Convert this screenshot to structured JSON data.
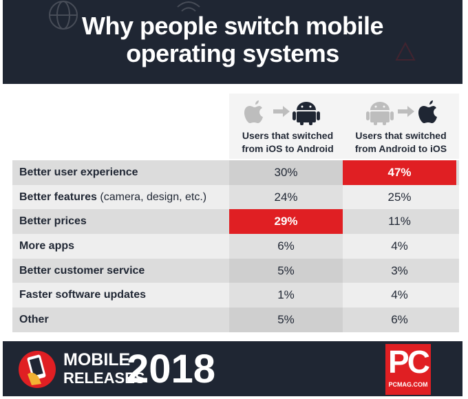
{
  "title": "Why people switch mobile\noperating systems",
  "columns": [
    {
      "label": "Users that switched\nfrom iOS to Android",
      "icons": [
        "apple-icon",
        "arrow-icon",
        "android-icon"
      ]
    },
    {
      "label": "Users that switched\nfrom Android to iOS",
      "icons": [
        "android-icon",
        "arrow-icon",
        "apple-icon"
      ]
    }
  ],
  "colors": {
    "header_bg": "#1f2633",
    "highlight": "#e01f23",
    "row_shade": "#dcdcdc",
    "row_light": "#eeeeee"
  },
  "chart_data": {
    "type": "table",
    "title": "Why people switch mobile operating systems",
    "columns": [
      "Users that switched from iOS to Android",
      "Users that switched from Android to iOS"
    ],
    "rows": [
      {
        "bold": "Better user experience",
        "rest": "",
        "values": [
          "30%",
          "47%"
        ],
        "highlight": [
          false,
          true
        ]
      },
      {
        "bold": "Better features",
        "rest": " (camera, design, etc.)",
        "values": [
          "24%",
          "25%"
        ],
        "highlight": [
          false,
          false
        ]
      },
      {
        "bold": "Better prices",
        "rest": "",
        "values": [
          "29%",
          "11%"
        ],
        "highlight": [
          true,
          false
        ]
      },
      {
        "bold": "More apps",
        "rest": "",
        "values": [
          "6%",
          "4%"
        ],
        "highlight": [
          false,
          false
        ]
      },
      {
        "bold": "Better customer service",
        "rest": "",
        "values": [
          "5%",
          "3%"
        ],
        "highlight": [
          false,
          false
        ]
      },
      {
        "bold": "Faster software updates",
        "rest": "",
        "values": [
          "1%",
          "4%"
        ],
        "highlight": [
          false,
          false
        ]
      },
      {
        "bold": "Other",
        "rest": "",
        "values": [
          "5%",
          "6%"
        ],
        "highlight": [
          false,
          false
        ]
      }
    ]
  },
  "footer": {
    "line1": "MOBILE",
    "line2": "RELEASES",
    "year": "2018",
    "pc": "PC",
    "site": "PCMAG.COM"
  }
}
